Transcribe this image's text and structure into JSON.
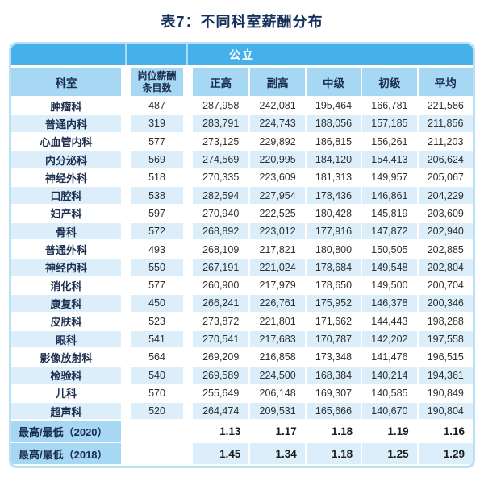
{
  "title": "表7：不同科室薪酬分布",
  "colors": {
    "group_bar": "#45b0ea",
    "header_blue": "#a6d8f3",
    "row_alt": "#dceefa",
    "outer_border": "#b9e0f6",
    "title_navy": "#16325c"
  },
  "table": {
    "group_header": "公立",
    "columns": {
      "dept": "科室",
      "entries_line1": "岗位薪酬",
      "entries_line2": "条目数",
      "levels": [
        "正高",
        "副高",
        "中级",
        "初级",
        "平均"
      ]
    },
    "rows": [
      {
        "dept": "肿瘤科",
        "entries": "487",
        "values": [
          "287,958",
          "242,081",
          "195,464",
          "166,781",
          "221,586"
        ]
      },
      {
        "dept": "普通内科",
        "entries": "319",
        "values": [
          "283,791",
          "224,743",
          "188,056",
          "157,185",
          "211,856"
        ]
      },
      {
        "dept": "心血管内科",
        "entries": "577",
        "values": [
          "273,125",
          "229,892",
          "186,815",
          "156,261",
          "211,203"
        ]
      },
      {
        "dept": "内分泌科",
        "entries": "569",
        "values": [
          "274,569",
          "220,995",
          "184,120",
          "154,413",
          "206,624"
        ]
      },
      {
        "dept": "神经外科",
        "entries": "518",
        "values": [
          "270,335",
          "223,609",
          "181,313",
          "149,957",
          "205,067"
        ]
      },
      {
        "dept": "口腔科",
        "entries": "538",
        "values": [
          "282,594",
          "227,954",
          "178,436",
          "146,861",
          "204,229"
        ]
      },
      {
        "dept": "妇产科",
        "entries": "597",
        "values": [
          "270,940",
          "222,525",
          "180,428",
          "145,819",
          "203,609"
        ]
      },
      {
        "dept": "骨科",
        "entries": "572",
        "values": [
          "268,892",
          "223,012",
          "177,916",
          "147,872",
          "202,940"
        ]
      },
      {
        "dept": "普通外科",
        "entries": "493",
        "values": [
          "268,109",
          "217,821",
          "180,800",
          "150,505",
          "202,885"
        ]
      },
      {
        "dept": "神经内科",
        "entries": "550",
        "values": [
          "267,191",
          "221,024",
          "178,684",
          "149,548",
          "202,804"
        ]
      },
      {
        "dept": "消化科",
        "entries": "577",
        "values": [
          "260,900",
          "217,979",
          "178,650",
          "149,500",
          "200,704"
        ]
      },
      {
        "dept": "康复科",
        "entries": "450",
        "values": [
          "266,241",
          "226,761",
          "175,952",
          "146,378",
          "200,346"
        ]
      },
      {
        "dept": "皮肤科",
        "entries": "523",
        "values": [
          "273,872",
          "221,801",
          "171,662",
          "144,443",
          "198,288"
        ]
      },
      {
        "dept": "眼科",
        "entries": "541",
        "values": [
          "270,541",
          "217,683",
          "170,787",
          "142,202",
          "197,558"
        ]
      },
      {
        "dept": "影像放射科",
        "entries": "564",
        "values": [
          "269,209",
          "216,858",
          "173,348",
          "141,476",
          "196,515"
        ]
      },
      {
        "dept": "检验科",
        "entries": "540",
        "values": [
          "269,589",
          "224,500",
          "168,384",
          "140,214",
          "194,361"
        ]
      },
      {
        "dept": "儿科",
        "entries": "570",
        "values": [
          "255,649",
          "206,148",
          "169,307",
          "140,585",
          "190,849"
        ]
      },
      {
        "dept": "超声科",
        "entries": "520",
        "values": [
          "264,474",
          "209,531",
          "165,666",
          "140,670",
          "190,804"
        ]
      }
    ],
    "ratio_rows": [
      {
        "label": "最高/最低（2020）",
        "values": [
          "1.13",
          "1.17",
          "1.18",
          "1.19",
          "1.16"
        ]
      },
      {
        "label": "最高/最低（2018）",
        "values": [
          "1.45",
          "1.34",
          "1.18",
          "1.25",
          "1.29"
        ]
      }
    ]
  },
  "chart_data": {
    "type": "table",
    "title": "表7：不同科室薪酬分布",
    "group_header": {
      "label": "公立",
      "applies_to_columns": [
        "正高",
        "副高",
        "中级",
        "初级",
        "平均"
      ]
    },
    "columns": [
      "科室",
      "岗位薪酬条目数",
      "正高",
      "副高",
      "中级",
      "初级",
      "平均"
    ],
    "rows": [
      [
        "肿瘤科",
        487,
        287958,
        242081,
        195464,
        166781,
        221586
      ],
      [
        "普通内科",
        319,
        283791,
        224743,
        188056,
        157185,
        211856
      ],
      [
        "心血管内科",
        577,
        273125,
        229892,
        186815,
        156261,
        211203
      ],
      [
        "内分泌科",
        569,
        274569,
        220995,
        184120,
        154413,
        206624
      ],
      [
        "神经外科",
        518,
        270335,
        223609,
        181313,
        149957,
        205067
      ],
      [
        "口腔科",
        538,
        282594,
        227954,
        178436,
        146861,
        204229
      ],
      [
        "妇产科",
        597,
        270940,
        222525,
        180428,
        145819,
        203609
      ],
      [
        "骨科",
        572,
        268892,
        223012,
        177916,
        147872,
        202940
      ],
      [
        "普通外科",
        493,
        268109,
        217821,
        180800,
        150505,
        202885
      ],
      [
        "神经内科",
        550,
        267191,
        221024,
        178684,
        149548,
        202804
      ],
      [
        "消化科",
        577,
        260900,
        217979,
        178650,
        149500,
        200704
      ],
      [
        "康复科",
        450,
        266241,
        226761,
        175952,
        146378,
        200346
      ],
      [
        "皮肤科",
        523,
        273872,
        221801,
        171662,
        144443,
        198288
      ],
      [
        "眼科",
        541,
        270541,
        217683,
        170787,
        142202,
        197558
      ],
      [
        "影像放射科",
        564,
        269209,
        216858,
        173348,
        141476,
        196515
      ],
      [
        "检验科",
        540,
        269589,
        224500,
        168384,
        140214,
        194361
      ],
      [
        "儿科",
        570,
        255649,
        206148,
        169307,
        140585,
        190849
      ],
      [
        "超声科",
        520,
        264474,
        209531,
        165666,
        140670,
        190804
      ]
    ],
    "footer_rows": [
      [
        "最高/最低（2020）",
        null,
        1.13,
        1.17,
        1.18,
        1.19,
        1.16
      ],
      [
        "最高/最低（2018）",
        null,
        1.45,
        1.34,
        1.18,
        1.25,
        1.29
      ]
    ]
  }
}
